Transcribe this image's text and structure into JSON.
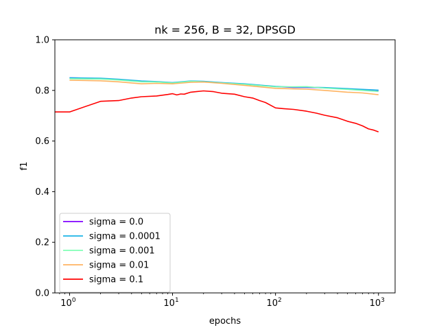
{
  "chart_data": {
    "type": "line",
    "title": "nk = 256, B = 32, DPSGD",
    "xlabel": "epochs",
    "ylabel": "f1",
    "xscale": "log",
    "xlim": [
      0.72,
      1450
    ],
    "ylim": [
      0.0,
      1.0
    ],
    "x_ticks": [
      {
        "value": 1,
        "base": "10",
        "exp": "0"
      },
      {
        "value": 10,
        "base": "10",
        "exp": "1"
      },
      {
        "value": 100,
        "base": "10",
        "exp": "2"
      },
      {
        "value": 1000,
        "base": "10",
        "exp": "3"
      }
    ],
    "y_ticks": [
      {
        "value": 0.0,
        "label": "0.0"
      },
      {
        "value": 0.2,
        "label": "0.2"
      },
      {
        "value": 0.4,
        "label": "0.4"
      },
      {
        "value": 0.6,
        "label": "0.6"
      },
      {
        "value": 0.8,
        "label": "0.8"
      },
      {
        "value": 1.0,
        "label": "1.0"
      }
    ],
    "grid": false,
    "legend_position": "lower-left",
    "series": [
      {
        "name": "sigma = 0.0",
        "color": "#8000ff",
        "x": [
          1,
          2,
          3,
          5,
          7,
          10,
          15,
          20,
          30,
          50,
          70,
          100,
          150,
          200,
          300,
          500,
          700,
          1000
        ],
        "y": [
          0.85,
          0.847,
          0.843,
          0.836,
          0.834,
          0.83,
          0.836,
          0.835,
          0.83,
          0.825,
          0.82,
          0.815,
          0.812,
          0.812,
          0.81,
          0.806,
          0.803,
          0.8
        ]
      },
      {
        "name": "sigma = 0.0001",
        "color": "#1ab2e6",
        "x": [
          1,
          2,
          3,
          5,
          7,
          10,
          15,
          20,
          30,
          50,
          70,
          100,
          150,
          200,
          300,
          500,
          700,
          1000
        ],
        "y": [
          0.85,
          0.848,
          0.844,
          0.837,
          0.835,
          0.831,
          0.837,
          0.836,
          0.831,
          0.826,
          0.821,
          0.816,
          0.813,
          0.813,
          0.811,
          0.807,
          0.804,
          0.801
        ]
      },
      {
        "name": "sigma = 0.001",
        "color": "#80ffb4",
        "x": [
          1,
          2,
          3,
          5,
          7,
          10,
          15,
          20,
          30,
          50,
          70,
          100,
          150,
          200,
          300,
          500,
          700,
          1000
        ],
        "y": [
          0.846,
          0.845,
          0.841,
          0.834,
          0.833,
          0.829,
          0.836,
          0.834,
          0.829,
          0.824,
          0.819,
          0.814,
          0.814,
          0.815,
          0.809,
          0.804,
          0.8,
          0.796
        ]
      },
      {
        "name": "sigma = 0.01",
        "color": "#ffb360",
        "x": [
          1,
          2,
          3,
          5,
          7,
          10,
          15,
          20,
          30,
          50,
          70,
          100,
          150,
          200,
          300,
          500,
          700,
          1000
        ],
        "y": [
          0.84,
          0.838,
          0.834,
          0.826,
          0.828,
          0.826,
          0.832,
          0.833,
          0.828,
          0.82,
          0.814,
          0.808,
          0.806,
          0.805,
          0.8,
          0.793,
          0.79,
          0.783
        ]
      },
      {
        "name": "sigma = 0.1",
        "color": "#ff0000",
        "x": [
          0.72,
          1,
          2,
          3,
          4,
          5,
          7,
          9,
          10,
          11,
          12,
          13,
          15,
          17,
          20,
          25,
          30,
          40,
          50,
          60,
          70,
          80,
          100,
          120,
          150,
          200,
          250,
          300,
          400,
          500,
          600,
          700,
          800,
          900,
          1000
        ],
        "y": [
          0.715,
          0.715,
          0.757,
          0.76,
          0.77,
          0.775,
          0.778,
          0.784,
          0.787,
          0.782,
          0.786,
          0.785,
          0.793,
          0.795,
          0.798,
          0.795,
          0.789,
          0.785,
          0.775,
          0.77,
          0.76,
          0.752,
          0.731,
          0.728,
          0.725,
          0.718,
          0.71,
          0.702,
          0.692,
          0.678,
          0.67,
          0.66,
          0.648,
          0.643,
          0.636
        ]
      }
    ]
  }
}
